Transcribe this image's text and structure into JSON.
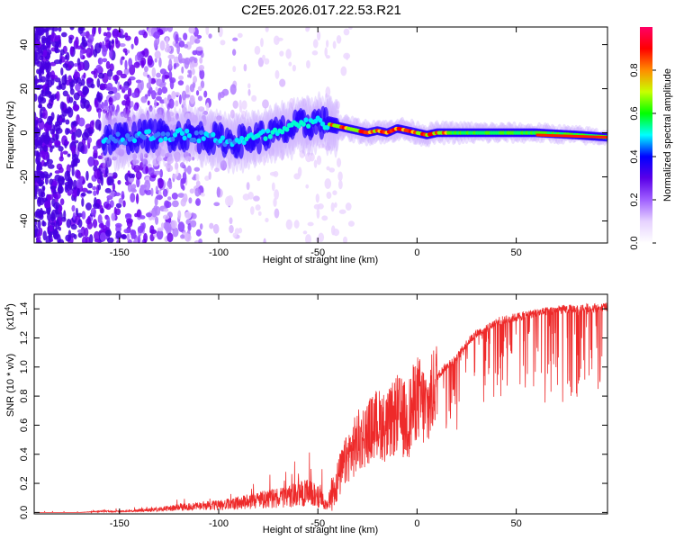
{
  "title": "C2E5.2026.017.22.53.R21",
  "chart_data": [
    {
      "type": "heatmap",
      "name": "spectrogram",
      "xlabel": "Height of straight line (km)",
      "ylabel": "Frequency (Hz)",
      "xlim": [
        -193,
        96
      ],
      "ylim": [
        -50,
        48
      ],
      "xticks": [
        -150,
        -100,
        -50,
        0,
        50
      ],
      "xtick_labels": [
        "-150",
        "-100",
        "-50",
        "0",
        "50"
      ],
      "yticks": [
        -40,
        -20,
        0,
        20,
        40
      ],
      "ytick_labels": [
        "-40",
        "-20",
        "0",
        "20",
        "40"
      ],
      "ridge": {
        "x": [
          -158,
          -145,
          -130,
          -115,
          -100,
          -90,
          -80,
          -70,
          -60,
          -50,
          -45,
          -40,
          -35,
          -30,
          -25,
          -20,
          -15,
          -10,
          -5,
          0,
          5,
          10,
          20,
          40,
          60,
          80,
          96
        ],
        "y": [
          -3,
          -2,
          -1,
          -1,
          -3,
          -4,
          -2,
          0,
          3,
          5,
          4,
          3,
          2,
          1,
          0,
          1,
          0,
          2,
          1,
          0,
          -1,
          0,
          0,
          0,
          0,
          -1,
          -2
        ]
      },
      "colorbar": {
        "label": "Normalized spectral amplitude",
        "range": [
          0,
          1
        ],
        "ticks": [
          0.0,
          0.2,
          0.4,
          0.6,
          0.8
        ],
        "tick_labels": [
          "0.0",
          "0.2",
          "0.4",
          "0.6",
          "0.8"
        ],
        "colors": [
          "#ffffff",
          "#e6d2ff",
          "#a060ff",
          "#5a00e8",
          "#0000ff",
          "#00ffff",
          "#00ff00",
          "#c8ff00",
          "#ff8c00",
          "#ff0000",
          "#ff0066"
        ]
      }
    },
    {
      "type": "line",
      "name": "snr",
      "xlabel": "Height of straight line (km)",
      "ylabel": "SNR (10 * v/v)",
      "scale_label": "(x10",
      "scale_exp": "4",
      "scale_close": ")",
      "xlim": [
        -193,
        96
      ],
      "ylim": [
        -0.01,
        1.5
      ],
      "xticks": [
        -150,
        -100,
        -50,
        0,
        50
      ],
      "xtick_labels": [
        "-150",
        "-100",
        "-50",
        "0",
        "50"
      ],
      "yticks": [
        0.0,
        0.2,
        0.4,
        0.6,
        0.8,
        1.0,
        1.2,
        1.4
      ],
      "ytick_labels": [
        "0.0",
        "0.2",
        "0.4",
        "0.6",
        "0.8",
        "1.0",
        "1.2",
        "1.4"
      ],
      "color": "#ee2a2a",
      "envelope": {
        "x": [
          -193,
          -170,
          -160,
          -150,
          -140,
          -130,
          -120,
          -110,
          -100,
          -90,
          -80,
          -70,
          -60,
          -55,
          -50,
          -45,
          -40,
          -35,
          -30,
          -25,
          -20,
          -15,
          -10,
          -5,
          0,
          5,
          10,
          15,
          20,
          25,
          30,
          35,
          40,
          50,
          60,
          70,
          80,
          96
        ],
        "base": [
          0.0,
          0.0,
          0.01,
          0.01,
          0.02,
          0.03,
          0.05,
          0.06,
          0.07,
          0.09,
          0.12,
          0.14,
          0.18,
          0.19,
          0.16,
          0.06,
          0.22,
          0.38,
          0.48,
          0.55,
          0.62,
          0.58,
          0.68,
          0.62,
          0.8,
          0.7,
          0.92,
          1.0,
          1.05,
          1.15,
          1.22,
          1.25,
          1.3,
          1.33,
          1.36,
          1.38,
          1.39,
          1.4
        ],
        "spread": [
          0.01,
          0.01,
          0.02,
          0.02,
          0.03,
          0.05,
          0.06,
          0.07,
          0.08,
          0.09,
          0.12,
          0.16,
          0.2,
          0.3,
          0.2,
          0.2,
          0.3,
          0.35,
          0.45,
          0.45,
          0.48,
          0.5,
          0.55,
          0.55,
          0.6,
          0.6,
          0.55,
          0.5,
          0.5,
          0.45,
          0.5,
          0.5,
          0.5,
          0.55,
          0.6,
          0.65,
          0.6,
          0.55
        ]
      }
    }
  ]
}
